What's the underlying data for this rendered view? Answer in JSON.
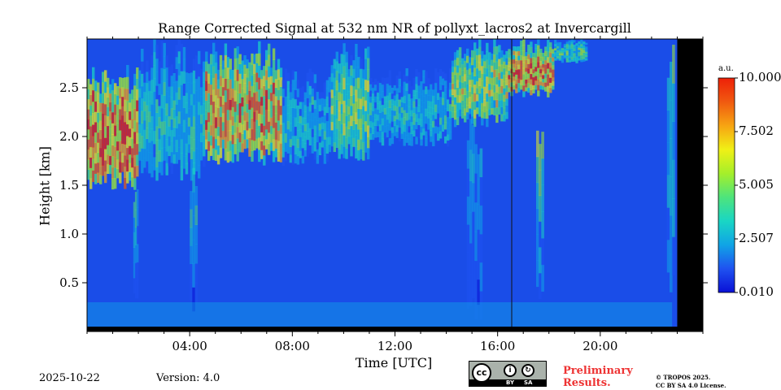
{
  "chart_data": {
    "type": "heatmap",
    "title": "Range Corrected Signal at 532 nm NR of pollyxt_lacros2 at Invercargill",
    "xlabel": "Time [UTC]",
    "ylabel": "Height [km]",
    "xlim": [
      0,
      24
    ],
    "ylim": [
      0,
      3.0
    ],
    "x_ticks": [
      {
        "value": 4,
        "label": "04:00"
      },
      {
        "value": 8,
        "label": "08:00"
      },
      {
        "value": 12,
        "label": "12:00"
      },
      {
        "value": 16,
        "label": "16:00"
      },
      {
        "value": 20,
        "label": "20:00"
      }
    ],
    "y_ticks": [
      {
        "value": 0.5,
        "label": "0.5"
      },
      {
        "value": 1.0,
        "label": "1.0"
      },
      {
        "value": 1.5,
        "label": "1.5"
      },
      {
        "value": 2.0,
        "label": "2.0"
      },
      {
        "value": 2.5,
        "label": "2.5"
      }
    ],
    "colorbar": {
      "unit": "a.u.",
      "range": [
        0.01,
        10.0
      ],
      "colors": [
        "#0a10d6",
        "#1f52f0",
        "#10a4e6",
        "#19d6c4",
        "#4ee47c",
        "#a5ef2a",
        "#f0f016",
        "#f7a412",
        "#f05a10",
        "#ee2008"
      ],
      "ticks": [
        {
          "value": 10.0,
          "label": "10.000"
        },
        {
          "value": 7.502,
          "label": "7.502"
        },
        {
          "value": 5.005,
          "label": "5.005"
        },
        {
          "value": 2.507,
          "label": "2.507"
        },
        {
          "value": 0.01,
          "label": "0.010"
        }
      ]
    },
    "background_level": 1.1,
    "features": [
      {
        "kind": "cloud",
        "start": 0.0,
        "end": 2.0,
        "base": 1.45,
        "top": 2.75,
        "intensity": 8.5
      },
      {
        "kind": "cloud",
        "start": 2.0,
        "end": 4.6,
        "base": 1.55,
        "top": 3.0,
        "intensity": 3.5
      },
      {
        "kind": "cloud",
        "start": 4.6,
        "end": 7.6,
        "base": 1.7,
        "top": 3.0,
        "intensity": 7.2
      },
      {
        "kind": "cloud",
        "start": 7.6,
        "end": 9.5,
        "base": 1.7,
        "top": 2.7,
        "intensity": 3.2
      },
      {
        "kind": "cloud",
        "start": 9.5,
        "end": 11.0,
        "base": 1.75,
        "top": 3.0,
        "intensity": 5.0
      },
      {
        "kind": "cloud",
        "start": 11.0,
        "end": 14.2,
        "base": 1.9,
        "top": 2.7,
        "intensity": 3.2
      },
      {
        "kind": "cloud",
        "start": 14.2,
        "end": 16.4,
        "base": 2.1,
        "top": 3.0,
        "intensity": 5.5
      },
      {
        "kind": "cloud",
        "start": 16.4,
        "end": 18.2,
        "base": 2.4,
        "top": 3.0,
        "intensity": 7.5
      },
      {
        "kind": "cloud",
        "start": 18.2,
        "end": 19.5,
        "base": 2.75,
        "top": 3.0,
        "intensity": 4.0
      },
      {
        "kind": "streak",
        "start": 1.8,
        "end": 2.0,
        "base": 0.2,
        "top": 1.5,
        "intensity": 4.0
      },
      {
        "kind": "streak",
        "start": 4.0,
        "end": 4.3,
        "base": 0.2,
        "top": 1.8,
        "intensity": 3.5
      },
      {
        "kind": "streak",
        "start": 14.8,
        "end": 15.4,
        "base": 0.1,
        "top": 2.2,
        "intensity": 3.0
      },
      {
        "kind": "streak",
        "start": 17.5,
        "end": 17.8,
        "base": 0.2,
        "top": 2.3,
        "intensity": 5.0
      },
      {
        "kind": "streak",
        "start": 22.6,
        "end": 22.9,
        "base": 0.2,
        "top": 3.0,
        "intensity": 4.5
      },
      {
        "kind": "boundary_layer",
        "start": 0.0,
        "end": 22.8,
        "base": 0.0,
        "top": 0.3,
        "intensity": 2.5
      },
      {
        "kind": "no_data",
        "start": 23.0,
        "end": 24.0,
        "base": 0.0,
        "top": 3.0,
        "intensity": 0
      }
    ]
  },
  "footer": {
    "date": "2025-10-22",
    "version": "Version: 4.0",
    "preliminary_line1": "Preliminary",
    "preliminary_line2": "Results.",
    "copyright_line1": "© TROPOS 2025.",
    "copyright_line2": "CC BY SA 4.0 License.",
    "license_badge": {
      "cc": "cc",
      "by": "BY",
      "sa": "SA"
    }
  }
}
